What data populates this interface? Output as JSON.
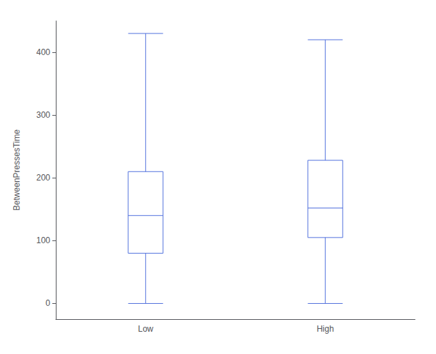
{
  "chart_data": {
    "type": "boxplot",
    "categories": [
      "Low",
      "High"
    ],
    "values": [
      [
        0,
        80,
        140,
        210,
        430
      ],
      [
        0,
        105,
        152,
        228,
        420
      ]
    ],
    "ylabel": "BetweenPressesTime",
    "ylim": [
      -25,
      450
    ],
    "yticks": [
      0,
      100,
      200,
      300,
      400
    ],
    "grid": false
  }
}
